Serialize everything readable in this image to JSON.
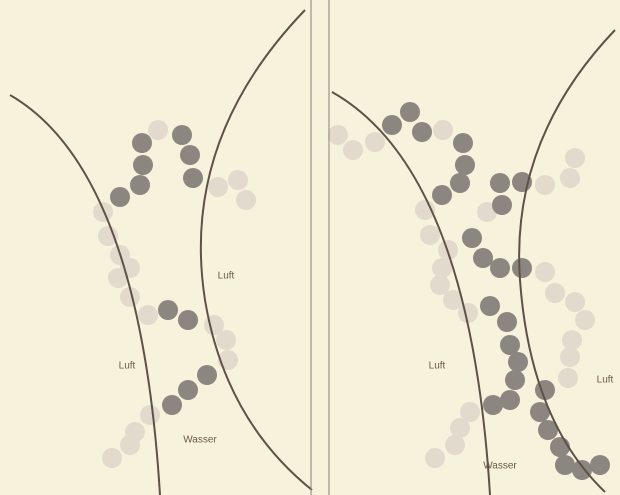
{
  "left_panel": {
    "labels": [
      "Luft",
      "Luft",
      "Wasser"
    ]
  },
  "right_panel": {
    "labels": [
      "Luft",
      "Wasser",
      "Luft"
    ]
  }
}
